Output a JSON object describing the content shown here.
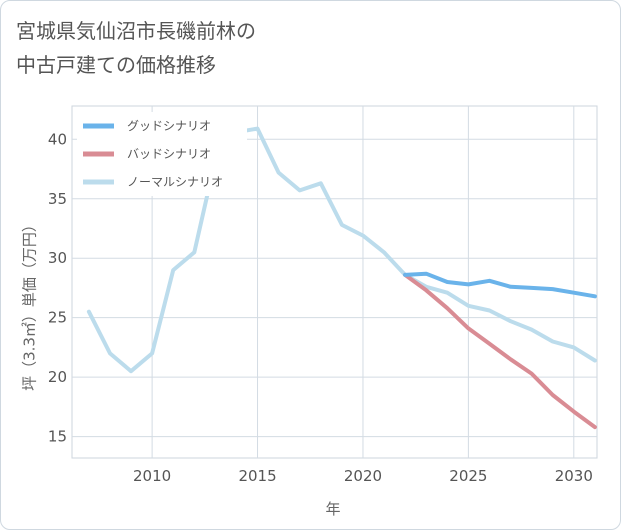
{
  "title_line1": "宮城県気仙沼市長磯前林の",
  "title_line2": "中古戸建ての価格推移",
  "chart_data": {
    "type": "line",
    "xlabel": "年",
    "ylabel": "坪（3.3㎡）単価（万円）",
    "xlim": [
      2006.2,
      2031.1
    ],
    "ylim": [
      13.2,
      42.8
    ],
    "xticks": [
      2010,
      2015,
      2020,
      2025,
      2030
    ],
    "yticks": [
      15,
      20,
      25,
      30,
      35,
      40
    ],
    "grid": true,
    "legend_position": "top-left",
    "series": [
      {
        "name": "グッドシナリオ",
        "color": "#6ab3ea",
        "x": [
          2022,
          2023,
          2024,
          2025,
          2026,
          2027,
          2028,
          2029,
          2030,
          2031
        ],
        "y": [
          28.6,
          28.7,
          28.0,
          27.8,
          28.1,
          27.6,
          27.5,
          27.4,
          27.1,
          26.8
        ]
      },
      {
        "name": "バッドシナリオ",
        "color": "#d98c94",
        "x": [
          2022,
          2023,
          2024,
          2025,
          2026,
          2027,
          2028,
          2029,
          2030,
          2031
        ],
        "y": [
          28.6,
          27.3,
          25.8,
          24.1,
          22.8,
          21.5,
          20.3,
          18.5,
          17.1,
          15.8
        ]
      },
      {
        "name": "ノーマルシナリオ",
        "color": "#bcdcec",
        "x": [
          2007,
          2008,
          2009,
          2010,
          2011,
          2012,
          2013,
          2014,
          2015,
          2016,
          2017,
          2018,
          2019,
          2020,
          2021,
          2022,
          2023,
          2024,
          2025,
          2026,
          2027,
          2028,
          2029,
          2030,
          2031
        ],
        "y": [
          25.5,
          22.0,
          20.5,
          22.0,
          29.0,
          30.5,
          38.3,
          40.6,
          40.9,
          37.2,
          35.7,
          36.3,
          32.8,
          31.9,
          30.5,
          28.6,
          27.6,
          27.1,
          26.0,
          25.6,
          24.7,
          24.0,
          23.0,
          22.5,
          21.4
        ]
      }
    ]
  }
}
